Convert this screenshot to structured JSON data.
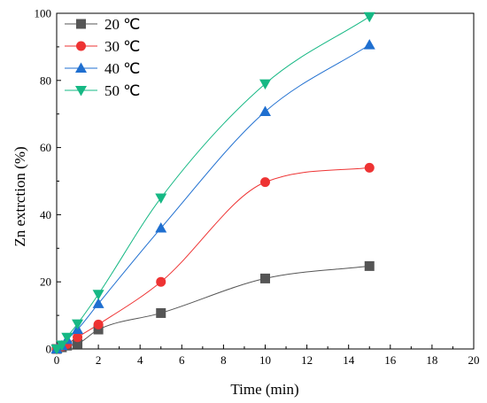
{
  "chart_data": {
    "type": "scatter",
    "title": "",
    "xlabel": "Time (min)",
    "ylabel": "Zn extrction (%)",
    "xlim": [
      0,
      20
    ],
    "ylim": [
      0,
      100
    ],
    "xticks": [
      0,
      2,
      4,
      6,
      8,
      10,
      12,
      14,
      16,
      18,
      20
    ],
    "yticks": [
      0,
      20,
      40,
      60,
      80,
      100
    ],
    "grid": false,
    "legend_position": "top-left",
    "series": [
      {
        "name": "20 ℃",
        "color": "#555555",
        "marker": "square",
        "x": [
          0,
          0.25,
          0.5,
          1,
          2,
          5,
          10,
          15
        ],
        "y": [
          0,
          0.5,
          1.0,
          1.5,
          5.8,
          10.7,
          21.0,
          24.7
        ]
      },
      {
        "name": "30 ℃",
        "color": "#ee3333",
        "marker": "circle",
        "x": [
          0,
          0.25,
          0.5,
          1,
          2,
          5,
          10,
          15
        ],
        "y": [
          0,
          0.8,
          1.5,
          3.5,
          7.3,
          20.0,
          49.7,
          54.0
        ]
      },
      {
        "name": "40 ℃",
        "color": "#1f6fd0",
        "marker": "triangle-up",
        "x": [
          0,
          0.25,
          0.5,
          1,
          2,
          5,
          10,
          15
        ],
        "y": [
          0,
          1.0,
          2.8,
          5.8,
          13.5,
          36.0,
          70.7,
          90.6
        ]
      },
      {
        "name": "50 ℃",
        "color": "#16b884",
        "marker": "triangle-down",
        "x": [
          0,
          0.25,
          0.5,
          1,
          2,
          5,
          10,
          15
        ],
        "y": [
          0,
          1.2,
          3.5,
          7.5,
          16.3,
          45.0,
          79.0,
          99.0
        ]
      }
    ]
  }
}
